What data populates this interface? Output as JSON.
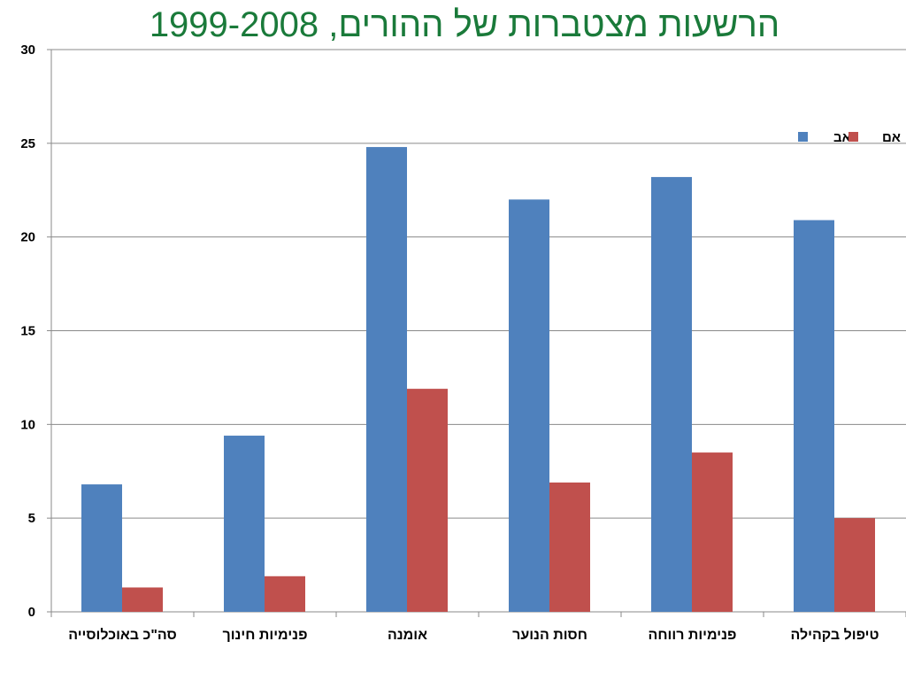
{
  "chart_data": {
    "type": "bar",
    "title": "הרשעות מצטברות של ההורים, 1999-2008",
    "xlabel": "",
    "ylabel": "",
    "categories": [
      "סה\"כ באוכלוסייה",
      "פנימיות חינוך",
      "אומנה",
      "חסות הנוער",
      "פנימיות רווחה",
      "טיפול בקהילה"
    ],
    "series": [
      {
        "name": "אב",
        "color": "#4f81bd",
        "values": [
          6.8,
          9.4,
          24.8,
          22.0,
          23.2,
          20.9
        ]
      },
      {
        "name": "אם",
        "color": "#c0504d",
        "values": [
          1.3,
          1.9,
          11.9,
          6.9,
          8.5,
          5.0
        ]
      }
    ],
    "ylim": [
      0,
      30
    ],
    "yticks": [
      0,
      5,
      10,
      15,
      20,
      25,
      30
    ],
    "grid": true,
    "legend_position": "top-right"
  }
}
